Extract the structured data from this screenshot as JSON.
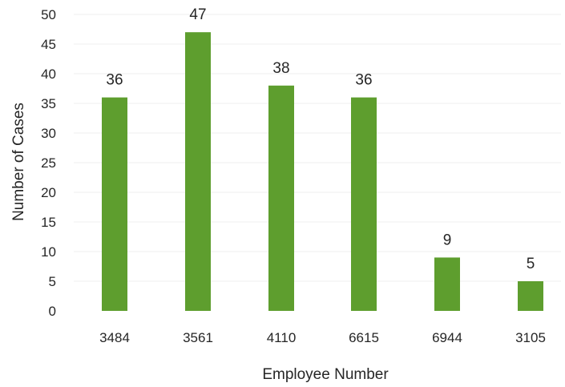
{
  "chart_data": {
    "type": "bar",
    "categories": [
      "3484",
      "3561",
      "4110",
      "6615",
      "6944",
      "3105"
    ],
    "values": [
      36,
      47,
      38,
      36,
      9,
      5
    ],
    "xlabel": "Employee Number",
    "ylabel": "Number of Cases",
    "ylim": [
      0,
      50
    ],
    "yticks": [
      0,
      5,
      10,
      15,
      20,
      25,
      30,
      35,
      40,
      45,
      50
    ],
    "grid": true,
    "data_labels": true,
    "colors": {
      "bar": "#5e9e2e",
      "text": "#262626",
      "grid": "#efefef"
    }
  }
}
